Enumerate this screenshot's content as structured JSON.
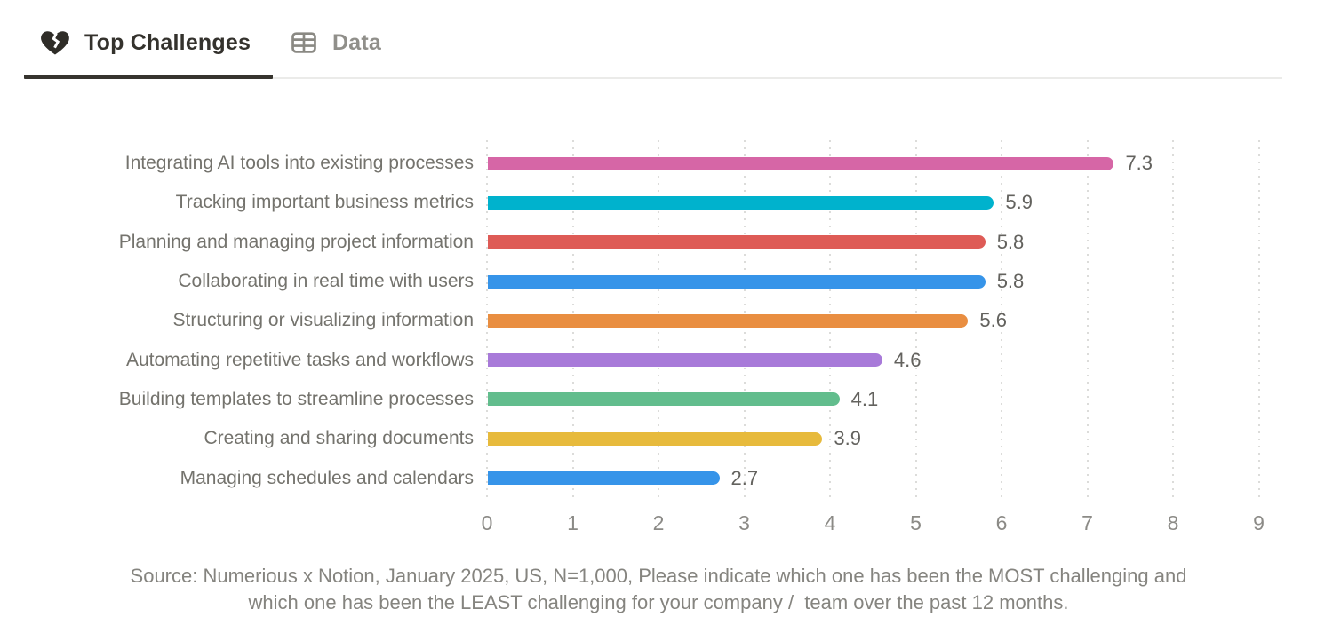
{
  "tabs": [
    {
      "label": "Top Challenges",
      "icon": "broken-heart",
      "active": true
    },
    {
      "label": "Data",
      "icon": "table",
      "active": false
    }
  ],
  "chart_data": {
    "type": "bar",
    "orientation": "horizontal",
    "title": "",
    "xlabel": "",
    "ylabel": "",
    "xlim": [
      0,
      9
    ],
    "xticks": [
      0,
      1,
      2,
      3,
      4,
      5,
      6,
      7,
      8,
      9
    ],
    "grid": "vertical-dotted",
    "legend": "none",
    "categories": [
      "Integrating AI tools into existing processes",
      "Tracking important business metrics",
      "Planning and managing project information",
      "Collaborating in real time with users",
      "Structuring or visualizing information",
      "Automating repetitive tasks and workflows",
      "Building templates to streamline processes",
      "Creating and sharing documents",
      "Managing schedules and calendars"
    ],
    "values": [
      7.3,
      5.9,
      5.8,
      5.8,
      5.6,
      4.6,
      4.1,
      3.9,
      2.7
    ],
    "value_labels": [
      "7.3",
      "5.9",
      "5.8",
      "5.8",
      "5.6",
      "4.6",
      "4.1",
      "3.9",
      "2.7"
    ],
    "bar_colors": [
      "#d666a6",
      "#00b2cd",
      "#de5b56",
      "#3694e9",
      "#e98e41",
      "#a87ad9",
      "#62bd8d",
      "#e7ba3c",
      "#3694e9"
    ]
  },
  "source": {
    "line1": "Source: Numerious x Notion, January 2025, US, N=1,000, Please indicate which one has been the MOST challenging and",
    "line2": "which one has been the LEAST challenging for your company /  team over the past 12 months."
  },
  "colors": {
    "active_tab_text": "#34322d",
    "inactive_tab_text": "#908f8a",
    "active_underline": "#36342e",
    "divider": "#ebebe9",
    "category_label": "#74736d",
    "value_label": "#63625e",
    "tick_label": "#8b8a86",
    "gridline": "#dcdcda",
    "source_text": "#85847f"
  }
}
